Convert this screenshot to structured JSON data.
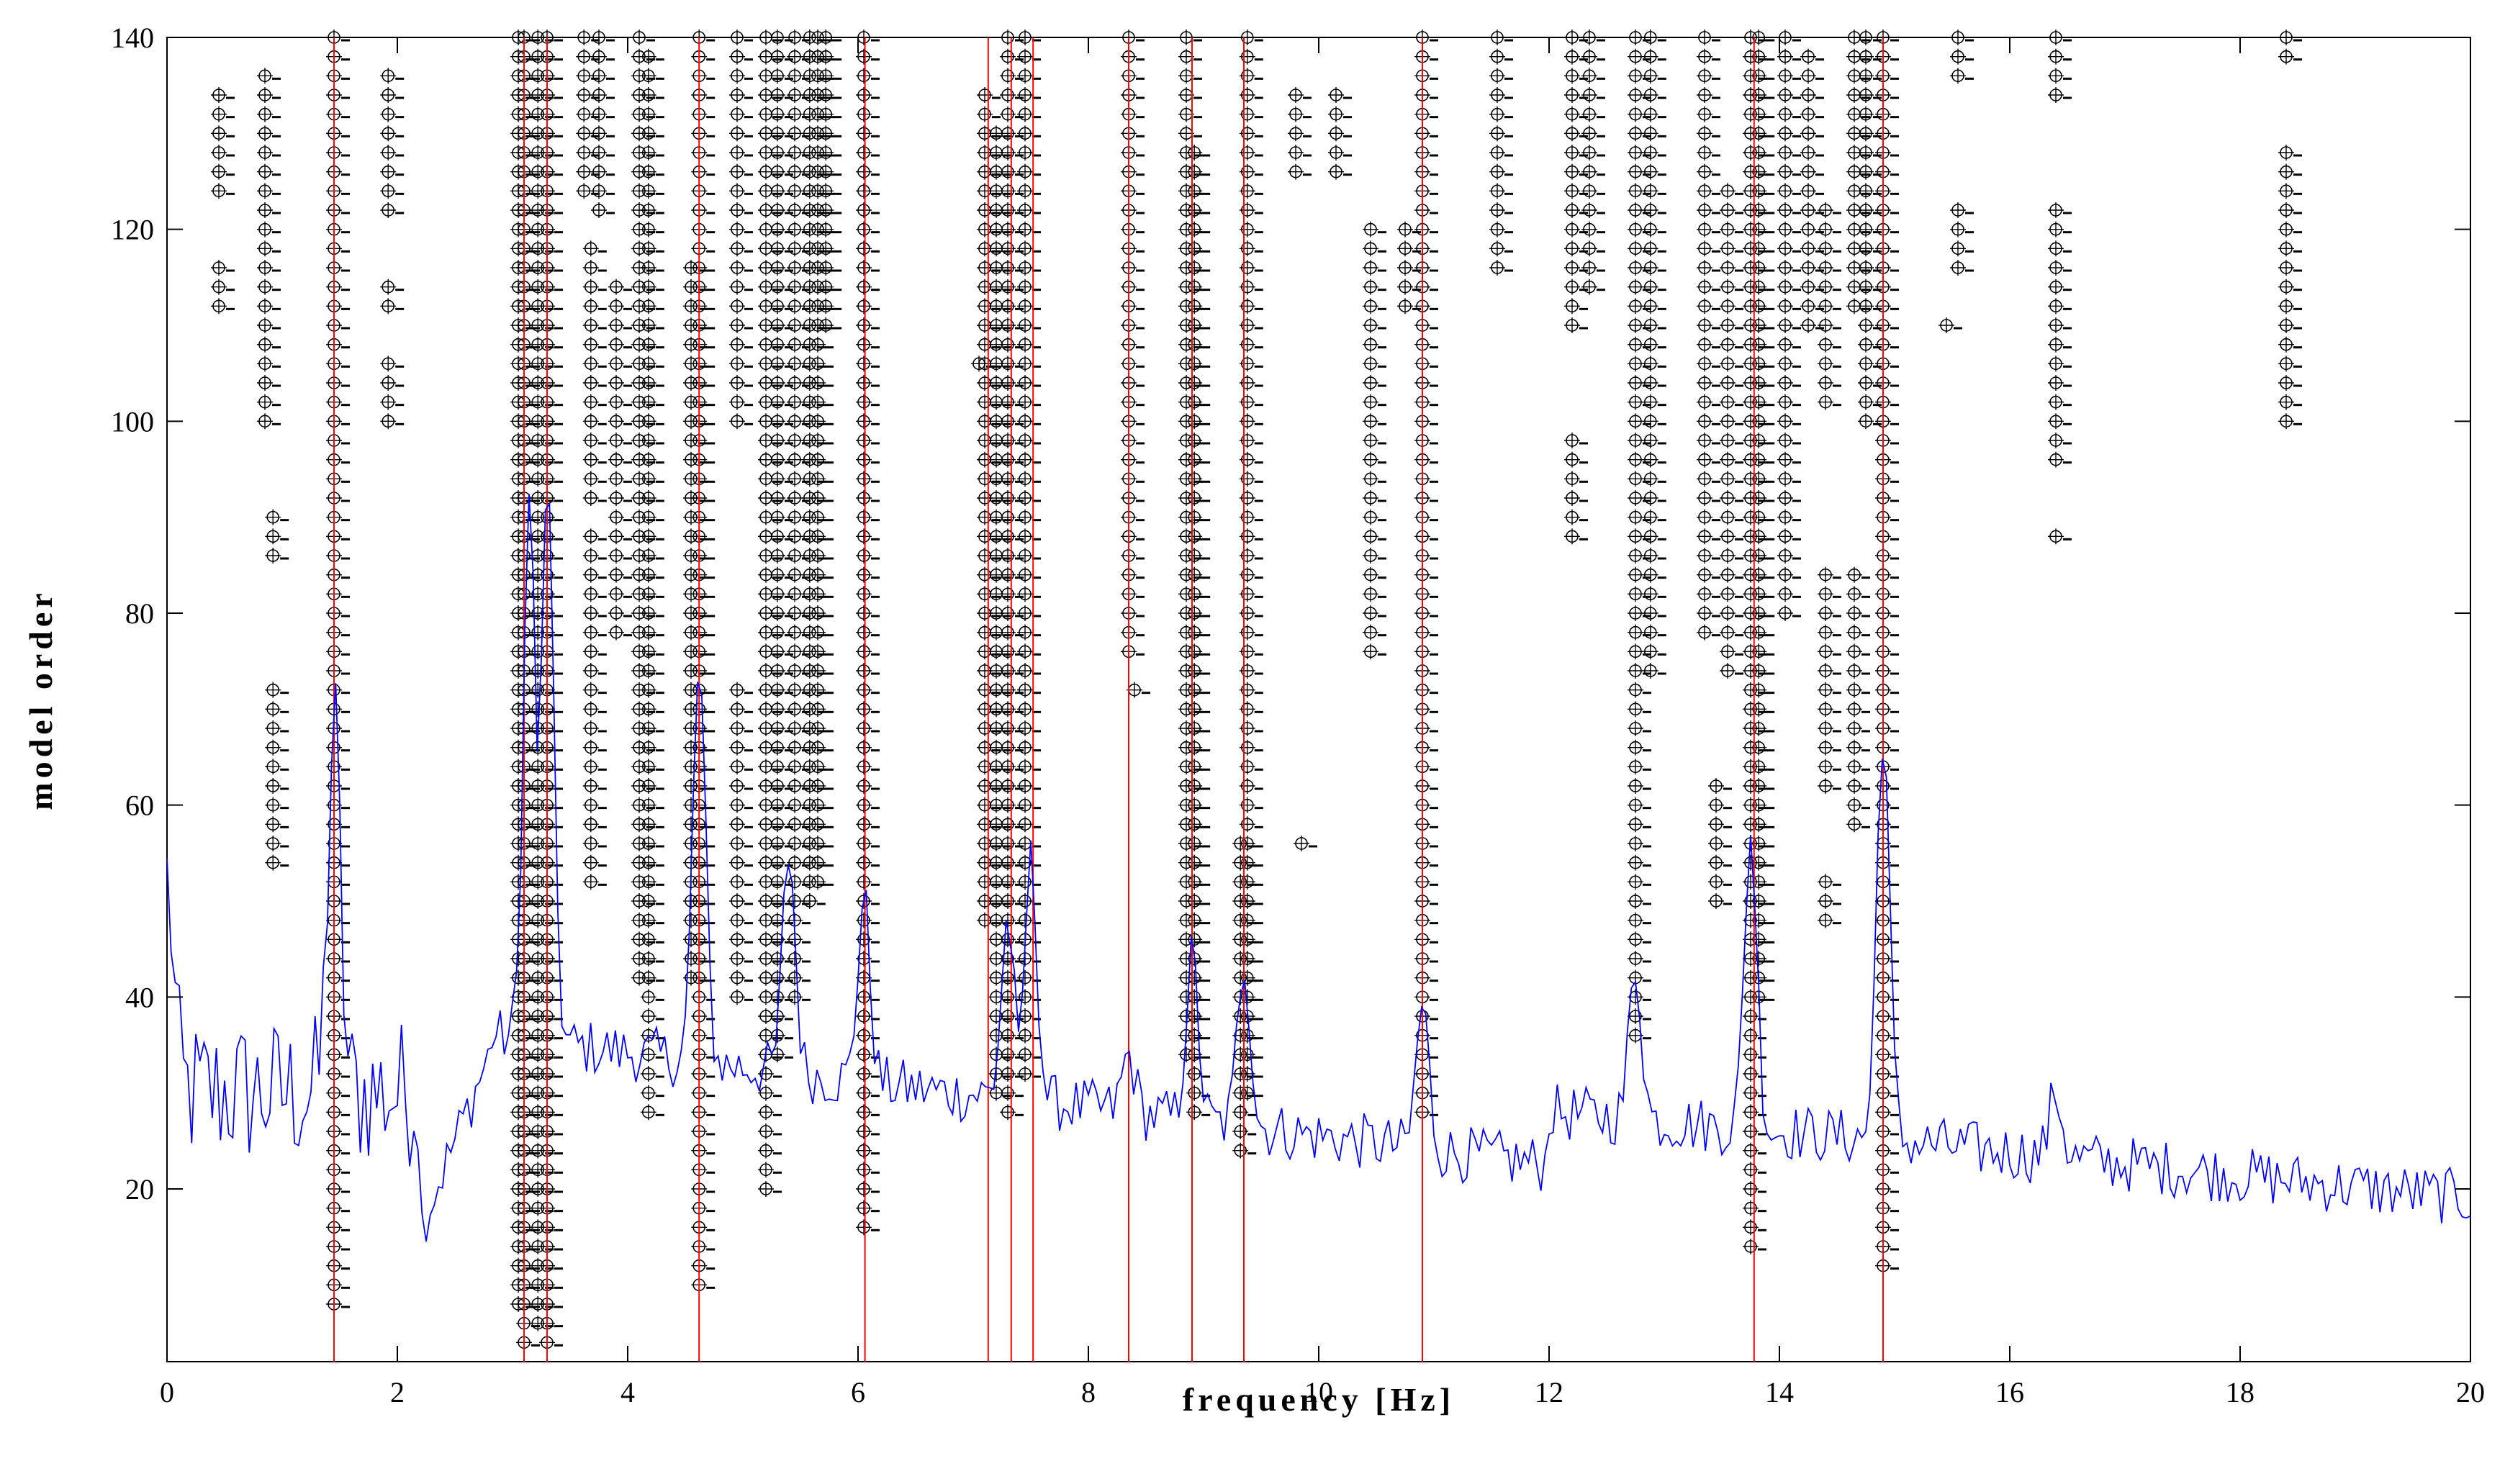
{
  "chart_data": {
    "type": "stabilization-diagram",
    "title": "",
    "xlabel": "frequency [Hz]",
    "ylabel": "model order",
    "xlim": [
      0,
      20
    ],
    "ylim": [
      2,
      140
    ],
    "xticks": [
      0,
      2,
      4,
      6,
      8,
      10,
      12,
      14,
      16,
      18,
      20
    ],
    "yticks": [
      20,
      40,
      60,
      80,
      100,
      120,
      140
    ],
    "grid": false,
    "colors": {
      "spectrum": "#0000ff",
      "modes": "#ff0000",
      "poles": "#000000"
    },
    "identified_modes_hz": [
      1.45,
      3.1,
      3.3,
      4.62,
      6.06,
      7.13,
      7.33,
      7.52,
      8.35,
      8.9,
      9.35,
      10.9,
      13.78,
      14.9
    ],
    "pole_columns": [
      {
        "f": 0.45,
        "segments": [
          [
            124,
            134
          ]
        ]
      },
      {
        "f": 0.45,
        "segments": [
          [
            112,
            116
          ]
        ]
      },
      {
        "f": 0.85,
        "segments": [
          [
            100,
            136
          ]
        ]
      },
      {
        "f": 0.92,
        "segments": [
          [
            86,
            90
          ],
          [
            54,
            72
          ]
        ]
      },
      {
        "f": 1.45,
        "segments": [
          [
            8,
            140
          ]
        ]
      },
      {
        "f": 1.92,
        "segments": [
          [
            122,
            136
          ],
          [
            112,
            114
          ],
          [
            100,
            106
          ]
        ]
      },
      {
        "f": 3.05,
        "segments": [
          [
            8,
            140
          ]
        ]
      },
      {
        "f": 3.1,
        "segments": [
          [
            4,
            140
          ]
        ]
      },
      {
        "f": 3.22,
        "segments": [
          [
            6,
            140
          ]
        ]
      },
      {
        "f": 3.3,
        "segments": [
          [
            4,
            140
          ]
        ]
      },
      {
        "f": 3.62,
        "segments": [
          [
            124,
            140
          ]
        ]
      },
      {
        "f": 3.68,
        "segments": [
          [
            92,
            118
          ],
          [
            52,
            88
          ]
        ]
      },
      {
        "f": 3.75,
        "segments": [
          [
            122,
            140
          ]
        ]
      },
      {
        "f": 3.9,
        "segments": [
          [
            78,
            114
          ]
        ]
      },
      {
        "f": 4.1,
        "segments": [
          [
            42,
            140
          ]
        ]
      },
      {
        "f": 4.18,
        "segments": [
          [
            28,
            138
          ]
        ]
      },
      {
        "f": 4.55,
        "segments": [
          [
            42,
            116
          ]
        ]
      },
      {
        "f": 4.62,
        "segments": [
          [
            10,
            140
          ]
        ]
      },
      {
        "f": 4.95,
        "segments": [
          [
            100,
            140
          ],
          [
            40,
            72
          ]
        ]
      },
      {
        "f": 5.2,
        "segments": [
          [
            20,
            140
          ]
        ]
      },
      {
        "f": 5.3,
        "segments": [
          [
            34,
            140
          ]
        ]
      },
      {
        "f": 5.45,
        "segments": [
          [
            40,
            140
          ]
        ]
      },
      {
        "f": 5.58,
        "segments": [
          [
            50,
            140
          ]
        ]
      },
      {
        "f": 5.65,
        "segments": [
          [
            52,
            140
          ]
        ]
      },
      {
        "f": 5.72,
        "segments": [
          [
            110,
            140
          ]
        ]
      },
      {
        "f": 6.05,
        "segments": [
          [
            16,
            140
          ]
        ]
      },
      {
        "f": 7.05,
        "segments": [
          [
            106,
            106
          ]
        ]
      },
      {
        "f": 7.1,
        "segments": [
          [
            48,
            134
          ]
        ]
      },
      {
        "f": 7.2,
        "segments": [
          [
            30,
            130
          ]
        ]
      },
      {
        "f": 7.3,
        "segments": [
          [
            28,
            140
          ]
        ]
      },
      {
        "f": 7.45,
        "segments": [
          [
            32,
            140
          ]
        ]
      },
      {
        "f": 8.35,
        "segments": [
          [
            76,
            140
          ]
        ]
      },
      {
        "f": 8.4,
        "segments": [
          [
            72,
            72
          ]
        ]
      },
      {
        "f": 8.85,
        "segments": [
          [
            34,
            140
          ]
        ]
      },
      {
        "f": 8.92,
        "segments": [
          [
            28,
            128
          ]
        ]
      },
      {
        "f": 9.32,
        "segments": [
          [
            24,
            56
          ]
        ]
      },
      {
        "f": 9.38,
        "segments": [
          [
            30,
            140
          ]
        ]
      },
      {
        "f": 9.8,
        "segments": [
          [
            126,
            134
          ]
        ]
      },
      {
        "f": 9.85,
        "segments": [
          [
            56,
            56
          ]
        ]
      },
      {
        "f": 10.15,
        "segments": [
          [
            126,
            134
          ]
        ]
      },
      {
        "f": 10.45,
        "segments": [
          [
            76,
            120
          ]
        ]
      },
      {
        "f": 10.75,
        "segments": [
          [
            112,
            120
          ]
        ]
      },
      {
        "f": 10.9,
        "segments": [
          [
            28,
            140
          ]
        ]
      },
      {
        "f": 11.55,
        "segments": [
          [
            116,
            140
          ]
        ]
      },
      {
        "f": 12.2,
        "segments": [
          [
            88,
            98
          ],
          [
            110,
            140
          ]
        ]
      },
      {
        "f": 12.35,
        "segments": [
          [
            114,
            140
          ]
        ]
      },
      {
        "f": 12.75,
        "segments": [
          [
            36,
            140
          ]
        ]
      },
      {
        "f": 12.88,
        "segments": [
          [
            74,
            140
          ]
        ]
      },
      {
        "f": 13.35,
        "segments": [
          [
            78,
            140
          ]
        ]
      },
      {
        "f": 13.45,
        "segments": [
          [
            50,
            62
          ]
        ]
      },
      {
        "f": 13.55,
        "segments": [
          [
            74,
            124
          ]
        ]
      },
      {
        "f": 13.75,
        "segments": [
          [
            14,
            140
          ]
        ]
      },
      {
        "f": 13.82,
        "segments": [
          [
            40,
            140
          ]
        ]
      },
      {
        "f": 14.05,
        "segments": [
          [
            80,
            140
          ]
        ]
      },
      {
        "f": 14.25,
        "segments": [
          [
            110,
            138
          ]
        ]
      },
      {
        "f": 14.4,
        "segments": [
          [
            48,
            52
          ],
          [
            62,
            84
          ],
          [
            102,
            122
          ]
        ]
      },
      {
        "f": 14.65,
        "segments": [
          [
            58,
            84
          ],
          [
            112,
            140
          ]
        ]
      },
      {
        "f": 14.75,
        "segments": [
          [
            100,
            140
          ]
        ]
      },
      {
        "f": 14.9,
        "segments": [
          [
            12,
            140
          ]
        ]
      },
      {
        "f": 15.45,
        "segments": [
          [
            110,
            110
          ]
        ]
      },
      {
        "f": 15.55,
        "segments": [
          [
            116,
            122
          ],
          [
            136,
            140
          ]
        ]
      },
      {
        "f": 16.4,
        "segments": [
          [
            88,
            88
          ],
          [
            96,
            122
          ],
          [
            134,
            140
          ]
        ]
      },
      {
        "f": 18.4,
        "segments": [
          [
            100,
            128
          ],
          [
            138,
            140
          ]
        ]
      }
    ],
    "psd_shape_notes": "normalized spectrum peaks at identified modes",
    "spectrum": {
      "description": "power spectral density overlay (arbitrary units, plotted on model-order scale)",
      "peaks": [
        {
          "f": 0.0,
          "v": 52
        },
        {
          "f": 1.45,
          "v": 68
        },
        {
          "f": 3.15,
          "v": 92
        },
        {
          "f": 3.3,
          "v": 94
        },
        {
          "f": 4.62,
          "v": 74
        },
        {
          "f": 5.4,
          "v": 55
        },
        {
          "f": 6.05,
          "v": 50
        },
        {
          "f": 7.3,
          "v": 48
        },
        {
          "f": 7.5,
          "v": 54
        },
        {
          "f": 8.35,
          "v": 34
        },
        {
          "f": 8.9,
          "v": 44
        },
        {
          "f": 9.35,
          "v": 44
        },
        {
          "f": 10.9,
          "v": 39
        },
        {
          "f": 12.75,
          "v": 43
        },
        {
          "f": 13.75,
          "v": 57
        },
        {
          "f": 14.9,
          "v": 68
        },
        {
          "f": 16.4,
          "v": 30
        },
        {
          "f": 20.0,
          "v": 19
        }
      ]
    }
  }
}
